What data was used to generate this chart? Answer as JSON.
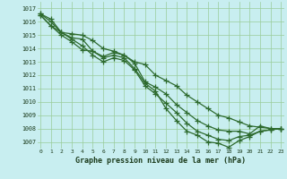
{
  "x": [
    0,
    1,
    2,
    3,
    4,
    5,
    6,
    7,
    8,
    9,
    10,
    11,
    12,
    13,
    14,
    15,
    16,
    17,
    18,
    19,
    20,
    21,
    22,
    23
  ],
  "series": [
    [
      1016.6,
      1016.2,
      1015.2,
      1015.1,
      1015.0,
      1014.6,
      1014.0,
      1013.8,
      1013.5,
      1013.0,
      1012.8,
      1012.0,
      1011.6,
      1011.2,
      1010.5,
      1010.0,
      1009.5,
      1009.0,
      1008.8,
      1008.5,
      1008.2,
      1008.1,
      1008.0,
      1008.0
    ],
    [
      1016.6,
      1016.0,
      1015.2,
      1014.8,
      1014.7,
      1013.8,
      1013.4,
      1013.7,
      1013.5,
      1012.9,
      1011.5,
      1011.1,
      1010.6,
      1009.8,
      1009.2,
      1008.6,
      1008.2,
      1007.9,
      1007.8,
      1007.8,
      1007.6,
      1008.2,
      1008.0,
      1008.0
    ],
    [
      1016.5,
      1015.7,
      1015.2,
      1014.7,
      1014.2,
      1013.5,
      1013.0,
      1013.3,
      1013.1,
      1012.4,
      1011.2,
      1010.6,
      1009.9,
      1009.2,
      1008.4,
      1007.8,
      1007.5,
      1007.2,
      1007.1,
      1007.4,
      1007.5,
      1007.8,
      1007.9,
      1008.0
    ],
    [
      1016.5,
      1015.7,
      1015.0,
      1014.5,
      1013.9,
      1013.8,
      1013.3,
      1013.5,
      1013.3,
      1012.5,
      1011.4,
      1010.8,
      1009.5,
      1008.6,
      1007.8,
      1007.5,
      1007.0,
      1006.9,
      1006.6,
      1007.1,
      1007.4,
      1007.8,
      1007.9,
      1008.0
    ]
  ],
  "line_color": "#2d6a2d",
  "marker": "+",
  "markersize": 4,
  "linewidth": 0.9,
  "ylim": [
    1006.5,
    1017.5
  ],
  "yticks": [
    1007,
    1008,
    1009,
    1010,
    1011,
    1012,
    1013,
    1014,
    1015,
    1016,
    1017
  ],
  "xlim": [
    -0.3,
    23.3
  ],
  "xticks": [
    0,
    1,
    2,
    3,
    4,
    5,
    6,
    7,
    8,
    9,
    10,
    11,
    12,
    13,
    14,
    15,
    16,
    17,
    18,
    19,
    20,
    21,
    22,
    23
  ],
  "xlabel": "Graphe pression niveau de la mer (hPa)",
  "bg_color": "#c8eef0",
  "grid_color": "#99cc99",
  "axis_color": "#1a501a",
  "label_color": "#1a3a1a"
}
